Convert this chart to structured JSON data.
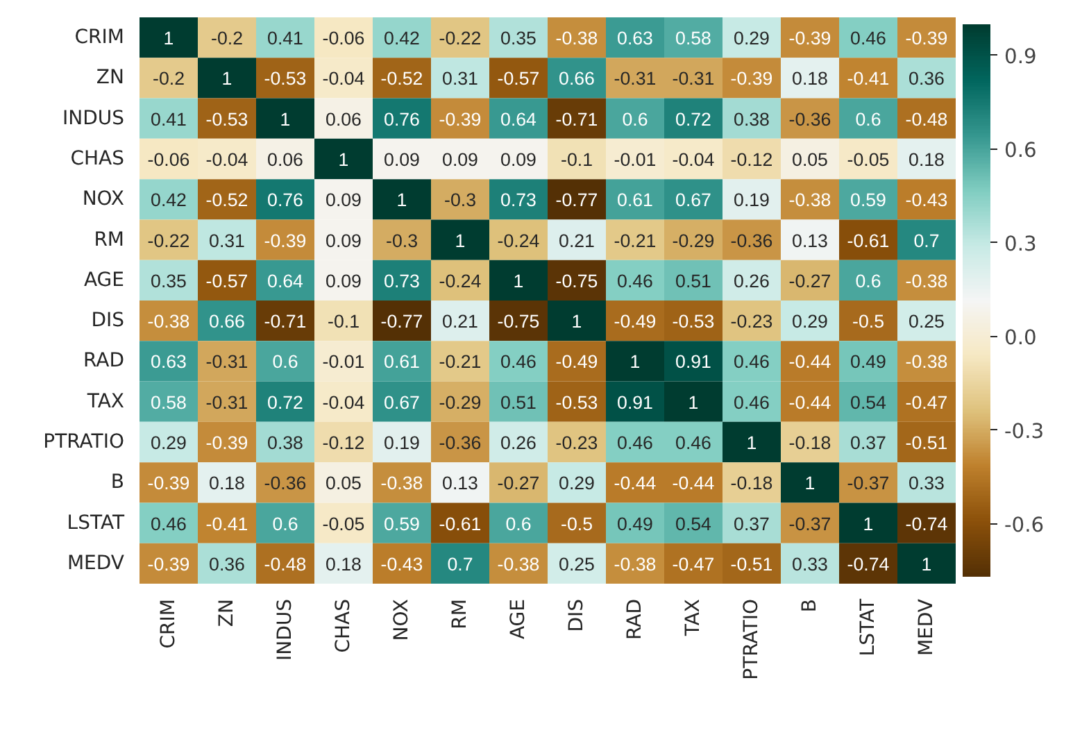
{
  "chart_data": {
    "type": "heatmap",
    "categories": [
      "CRIM",
      "ZN",
      "INDUS",
      "CHAS",
      "NOX",
      "RM",
      "AGE",
      "DIS",
      "RAD",
      "TAX",
      "PTRATIO",
      "B",
      "LSTAT",
      "MEDV"
    ],
    "y_categories": [
      "CRIM",
      "ZN",
      "INDUS",
      "CHAS",
      "NOX",
      "RM",
      "AGE",
      "DIS",
      "RAD",
      "TAX",
      "PTRATIO",
      "B",
      "LSTAT",
      "MEDV"
    ],
    "cells": [
      [
        1,
        -0.2,
        0.41,
        -0.06,
        0.42,
        -0.22,
        0.35,
        -0.38,
        0.63,
        0.58,
        0.29,
        -0.39,
        0.46,
        -0.39
      ],
      [
        -0.2,
        1,
        -0.53,
        -0.04,
        -0.52,
        0.31,
        -0.57,
        0.66,
        -0.31,
        -0.31,
        -0.39,
        0.18,
        -0.41,
        0.36
      ],
      [
        0.41,
        -0.53,
        1,
        0.06,
        0.76,
        -0.39,
        0.64,
        -0.71,
        0.6,
        0.72,
        0.38,
        -0.36,
        0.6,
        -0.48
      ],
      [
        -0.06,
        -0.04,
        0.06,
        1,
        0.09,
        0.09,
        0.09,
        -0.1,
        -0.01,
        -0.04,
        -0.12,
        0.05,
        -0.05,
        0.18
      ],
      [
        0.42,
        -0.52,
        0.76,
        0.09,
        1,
        -0.3,
        0.73,
        -0.77,
        0.61,
        0.67,
        0.19,
        -0.38,
        0.59,
        -0.43
      ],
      [
        -0.22,
        0.31,
        -0.39,
        0.09,
        -0.3,
        1,
        -0.24,
        0.21,
        -0.21,
        -0.29,
        -0.36,
        0.13,
        -0.61,
        0.7
      ],
      [
        0.35,
        -0.57,
        0.64,
        0.09,
        0.73,
        -0.24,
        1,
        -0.75,
        0.46,
        0.51,
        0.26,
        -0.27,
        0.6,
        -0.38
      ],
      [
        -0.38,
        0.66,
        -0.71,
        -0.1,
        -0.77,
        0.21,
        -0.75,
        1,
        -0.49,
        -0.53,
        -0.23,
        0.29,
        -0.5,
        0.25
      ],
      [
        0.63,
        -0.31,
        0.6,
        -0.01,
        0.61,
        -0.21,
        0.46,
        -0.49,
        1,
        0.91,
        0.46,
        -0.44,
        0.49,
        -0.38
      ],
      [
        0.58,
        -0.31,
        0.72,
        -0.04,
        0.67,
        -0.29,
        0.51,
        -0.53,
        0.91,
        1,
        0.46,
        -0.44,
        0.54,
        -0.47
      ],
      [
        0.29,
        -0.39,
        0.38,
        -0.12,
        0.19,
        -0.36,
        0.26,
        -0.23,
        0.46,
        0.46,
        1,
        -0.18,
        0.37,
        -0.51
      ],
      [
        -0.39,
        0.18,
        -0.36,
        0.05,
        -0.38,
        0.13,
        -0.27,
        0.29,
        -0.44,
        -0.44,
        -0.18,
        1,
        -0.37,
        0.33
      ],
      [
        0.46,
        -0.41,
        0.6,
        -0.05,
        0.59,
        -0.61,
        0.6,
        -0.5,
        0.49,
        0.54,
        0.37,
        -0.37,
        1,
        -0.74
      ],
      [
        -0.39,
        0.36,
        -0.48,
        0.18,
        -0.43,
        0.7,
        -0.38,
        0.25,
        -0.38,
        -0.47,
        -0.51,
        0.33,
        -0.74,
        1
      ]
    ],
    "clim": [
      -0.77,
      1
    ],
    "cticks": [
      -0.6,
      -0.3,
      {
        "value": 0,
        "label": "0.0"
      },
      0.3,
      0.6,
      0.9
    ],
    "data_labels": true
  }
}
